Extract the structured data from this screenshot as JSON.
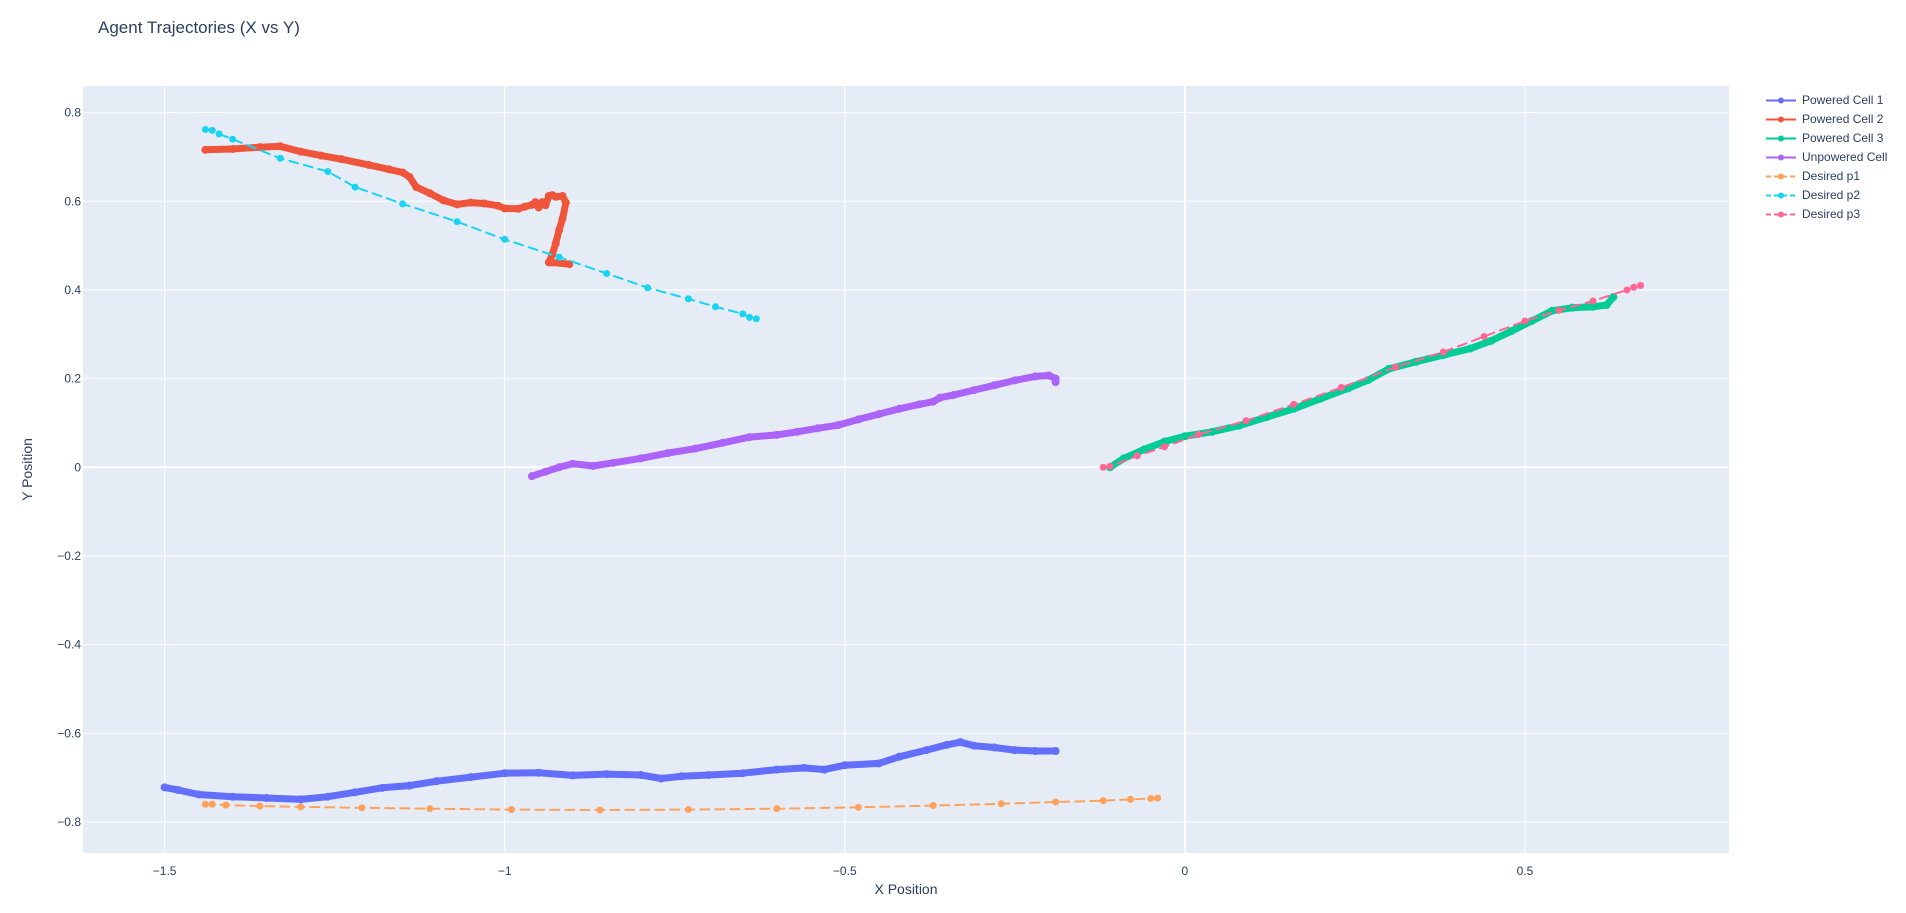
{
  "chart_data": {
    "type": "line",
    "title": "Agent Trajectories (X vs Y)",
    "xlabel": "X Position",
    "ylabel": "Y Position",
    "xlim": [
      -1.62,
      0.8
    ],
    "ylim": [
      -0.87,
      0.86
    ],
    "x_ticks": [
      -1.5,
      -1,
      -0.5,
      0,
      0.5
    ],
    "x_tick_labels": [
      "−1.5",
      "−1",
      "−0.5",
      "0",
      "0.5"
    ],
    "y_ticks": [
      -0.8,
      -0.6,
      -0.4,
      -0.2,
      0,
      0.2,
      0.4,
      0.6,
      0.8
    ],
    "y_tick_labels": [
      "−0.8",
      "−0.6",
      "−0.4",
      "−0.2",
      "0",
      "0.2",
      "0.4",
      "0.6",
      "0.8"
    ],
    "grid": true,
    "legend_position": "top-right outside",
    "plot_background": "#e5ecf6",
    "series": [
      {
        "name": "Powered Cell 1",
        "color": "#636efa",
        "dash": "solid",
        "x": [
          -1.5,
          -1.48,
          -1.45,
          -1.4,
          -1.35,
          -1.3,
          -1.26,
          -1.22,
          -1.18,
          -1.14,
          -1.1,
          -1.05,
          -1.0,
          -0.95,
          -0.9,
          -0.85,
          -0.8,
          -0.77,
          -0.74,
          -0.7,
          -0.65,
          -0.6,
          -0.56,
          -0.53,
          -0.5,
          -0.45,
          -0.42,
          -0.38,
          -0.35,
          -0.33,
          -0.31,
          -0.28,
          -0.25,
          -0.22,
          -0.19
        ],
        "y": [
          -0.722,
          -0.728,
          -0.738,
          -0.743,
          -0.746,
          -0.749,
          -0.743,
          -0.733,
          -0.723,
          -0.718,
          -0.708,
          -0.699,
          -0.69,
          -0.689,
          -0.695,
          -0.692,
          -0.694,
          -0.702,
          -0.697,
          -0.694,
          -0.69,
          -0.682,
          -0.678,
          -0.682,
          -0.672,
          -0.668,
          -0.653,
          -0.638,
          -0.626,
          -0.62,
          -0.628,
          -0.632,
          -0.638,
          -0.64,
          -0.64
        ]
      },
      {
        "name": "Powered Cell 2",
        "color": "#ef553b",
        "dash": "solid",
        "x": [
          -1.44,
          -1.4,
          -1.36,
          -1.33,
          -1.3,
          -1.27,
          -1.24,
          -1.2,
          -1.17,
          -1.15,
          -1.14,
          -1.13,
          -1.11,
          -1.09,
          -1.07,
          -1.05,
          -1.03,
          -1.01,
          -1.0,
          -0.98,
          -0.97,
          -0.96,
          -0.955,
          -0.95,
          -0.945,
          -0.94,
          -0.935,
          -0.93,
          -0.925,
          -0.915,
          -0.91,
          -0.915,
          -0.92,
          -0.925,
          -0.93,
          -0.935,
          -0.93,
          -0.905
        ],
        "y": [
          0.716,
          0.718,
          0.722,
          0.724,
          0.712,
          0.703,
          0.695,
          0.682,
          0.672,
          0.665,
          0.655,
          0.632,
          0.618,
          0.602,
          0.593,
          0.597,
          0.595,
          0.59,
          0.584,
          0.583,
          0.588,
          0.592,
          0.598,
          0.586,
          0.598,
          0.591,
          0.612,
          0.614,
          0.61,
          0.612,
          0.597,
          0.56,
          0.535,
          0.505,
          0.48,
          0.462,
          0.462,
          0.458
        ]
      },
      {
        "name": "Powered Cell 3",
        "color": "#00cc96",
        "dash": "solid",
        "x": [
          -0.11,
          -0.09,
          -0.06,
          -0.03,
          0.0,
          0.04,
          0.08,
          0.12,
          0.16,
          0.2,
          0.24,
          0.27,
          0.3,
          0.34,
          0.38,
          0.42,
          0.45,
          0.48,
          0.51,
          0.54,
          0.57,
          0.6,
          0.62,
          0.63
        ],
        "y": [
          0.0,
          0.02,
          0.04,
          0.058,
          0.07,
          0.08,
          0.094,
          0.113,
          0.132,
          0.155,
          0.178,
          0.197,
          0.222,
          0.238,
          0.253,
          0.268,
          0.285,
          0.307,
          0.33,
          0.353,
          0.36,
          0.362,
          0.366,
          0.384
        ]
      },
      {
        "name": "Unpowered Cell",
        "color": "#ab63fa",
        "dash": "solid",
        "x": [
          -0.96,
          -0.94,
          -0.92,
          -0.9,
          -0.87,
          -0.84,
          -0.8,
          -0.76,
          -0.72,
          -0.68,
          -0.64,
          -0.6,
          -0.57,
          -0.54,
          -0.51,
          -0.48,
          -0.45,
          -0.42,
          -0.39,
          -0.37,
          -0.36,
          -0.34,
          -0.31,
          -0.28,
          -0.25,
          -0.22,
          -0.2,
          -0.19,
          -0.19
        ],
        "y": [
          -0.02,
          -0.01,
          0.0,
          0.008,
          0.003,
          0.01,
          0.02,
          0.032,
          0.042,
          0.055,
          0.068,
          0.073,
          0.08,
          0.088,
          0.095,
          0.108,
          0.12,
          0.132,
          0.142,
          0.148,
          0.157,
          0.163,
          0.174,
          0.185,
          0.196,
          0.205,
          0.207,
          0.2,
          0.192
        ]
      },
      {
        "name": "Desired p1",
        "color": "#ffa15a",
        "dash": "dash",
        "x": [
          -1.44,
          -1.43,
          -1.41,
          -1.36,
          -1.3,
          -1.21,
          -1.11,
          -0.99,
          -0.86,
          -0.73,
          -0.6,
          -0.48,
          -0.37,
          -0.27,
          -0.19,
          -0.12,
          -0.08,
          -0.05,
          -0.04
        ],
        "y": [
          -0.76,
          -0.76,
          -0.762,
          -0.764,
          -0.766,
          -0.768,
          -0.77,
          -0.772,
          -0.773,
          -0.772,
          -0.77,
          -0.767,
          -0.763,
          -0.759,
          -0.755,
          -0.752,
          -0.749,
          -0.747,
          -0.746
        ]
      },
      {
        "name": "Desired p2",
        "color": "#19d3f3",
        "dash": "dash",
        "x": [
          -1.44,
          -1.43,
          -1.42,
          -1.4,
          -1.33,
          -1.26,
          -1.22,
          -1.15,
          -1.07,
          -1.0,
          -0.92,
          -0.85,
          -0.79,
          -0.73,
          -0.69,
          -0.65,
          -0.64,
          -0.63
        ],
        "y": [
          0.762,
          0.76,
          0.752,
          0.74,
          0.697,
          0.667,
          0.632,
          0.594,
          0.554,
          0.514,
          0.474,
          0.437,
          0.405,
          0.38,
          0.362,
          0.346,
          0.338,
          0.335
        ]
      },
      {
        "name": "Desired p3",
        "color": "#ff6692",
        "dash": "dash",
        "x": [
          -0.12,
          -0.11,
          -0.07,
          -0.03,
          0.02,
          0.09,
          0.16,
          0.23,
          0.31,
          0.38,
          0.44,
          0.5,
          0.55,
          0.6,
          0.65,
          0.66,
          0.67
        ],
        "y": [
          0.0,
          0.002,
          0.026,
          0.046,
          0.074,
          0.105,
          0.142,
          0.18,
          0.226,
          0.26,
          0.295,
          0.33,
          0.354,
          0.375,
          0.4,
          0.406,
          0.41
        ]
      }
    ]
  }
}
